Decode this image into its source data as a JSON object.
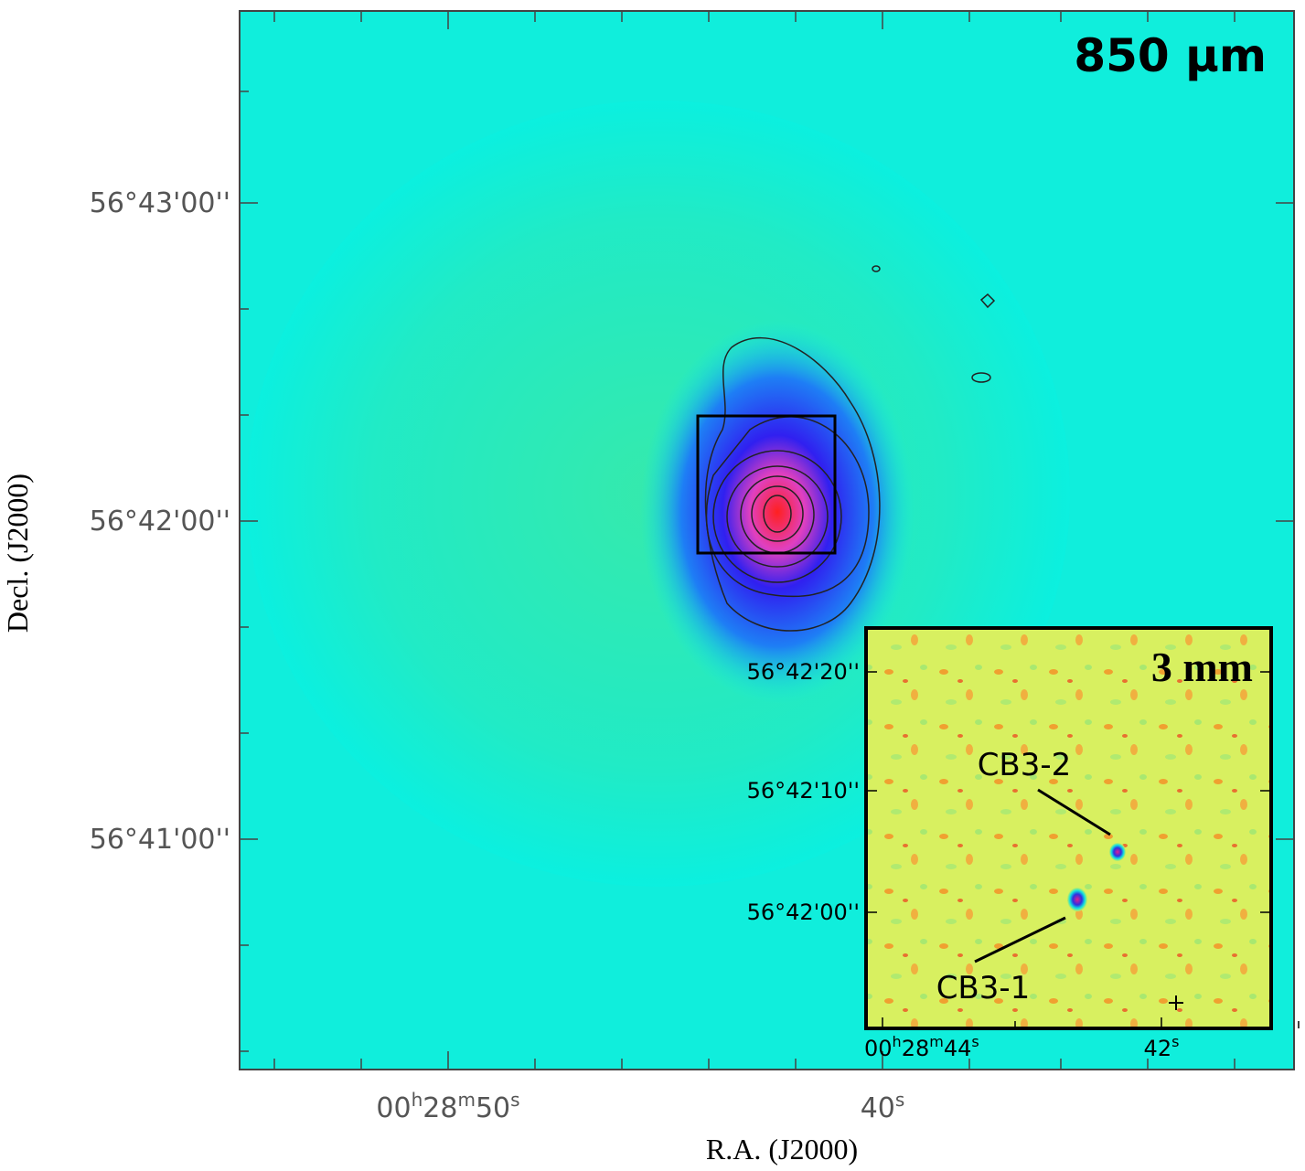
{
  "main_panel": {
    "label": "850 μm",
    "x_axis_label": "R.A. (J2000)",
    "y_axis_label": "Decl. (J2000)",
    "x_tick_labels": [
      [
        "00",
        "h",
        "28",
        "m",
        "50",
        "s"
      ],
      [
        "40",
        "s"
      ]
    ],
    "y_tick_labels": [
      "56°43'00''",
      "56°42'00''",
      "56°41'00''"
    ]
  },
  "inset": {
    "label": "3 mm",
    "y_tick_labels": [
      "56°42'20''",
      "56°42'10''",
      "56°42'00''"
    ],
    "x_tick_labels": [
      [
        "00",
        "h",
        "28",
        "m",
        "44",
        "s"
      ],
      [
        "42",
        "s"
      ]
    ],
    "sources": [
      {
        "label": "CB3-2"
      },
      {
        "label": "CB3-1"
      }
    ]
  }
}
